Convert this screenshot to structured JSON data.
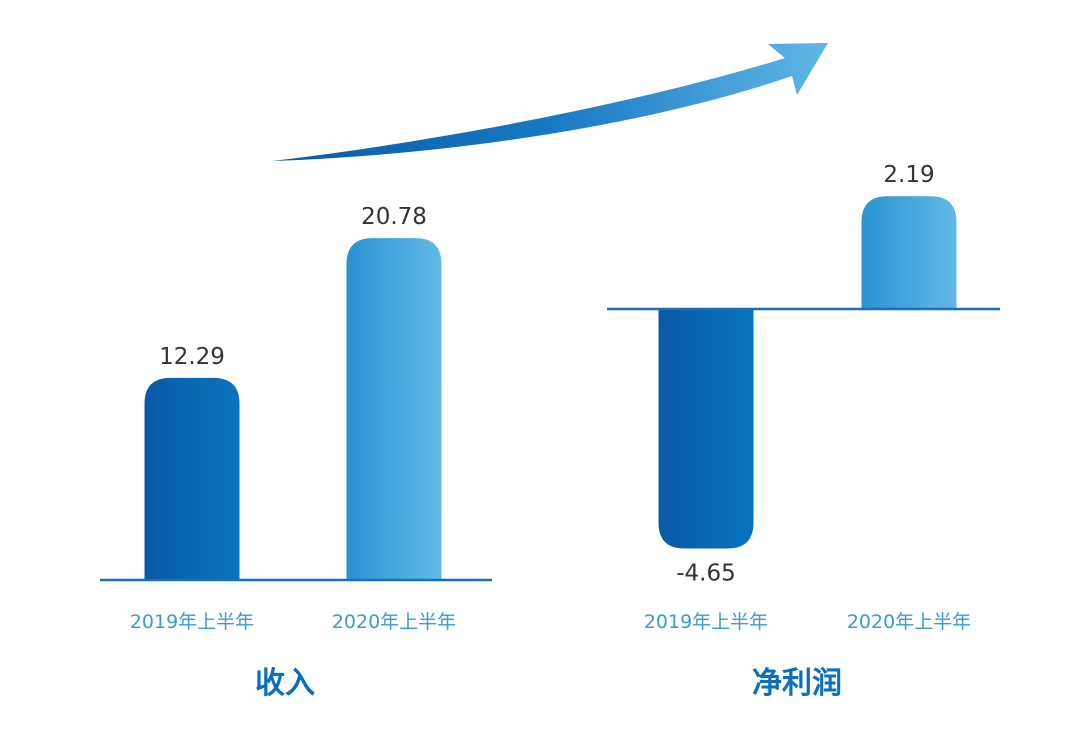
{
  "chart_data": [
    {
      "type": "bar",
      "title": "收入",
      "categories": [
        "2019年上半年",
        "2020年上半年"
      ],
      "values": [
        12.29,
        20.78
      ],
      "value_labels": [
        "12.29",
        "20.78"
      ],
      "grid": false,
      "colors": [
        "#0b62ae",
        "#4aaee0"
      ]
    },
    {
      "type": "bar",
      "title": "净利润",
      "categories": [
        "2019年上半年",
        "2020年上半年"
      ],
      "values": [
        -4.65,
        2.19
      ],
      "value_labels": [
        "-4.65",
        "2.19"
      ],
      "grid": false,
      "colors": [
        "#0b62ae",
        "#4aaee0"
      ]
    }
  ],
  "decoration": {
    "trend_arrow": "up-right",
    "arrow_color": "#1a7cc6"
  }
}
